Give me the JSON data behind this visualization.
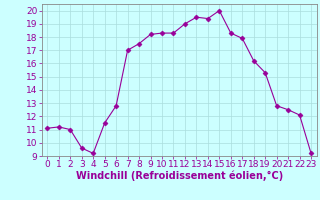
{
  "x": [
    0,
    1,
    2,
    3,
    4,
    5,
    6,
    7,
    8,
    9,
    10,
    11,
    12,
    13,
    14,
    15,
    16,
    17,
    18,
    19,
    20,
    21,
    22,
    23
  ],
  "y": [
    11.1,
    11.2,
    11.0,
    9.6,
    9.2,
    11.5,
    12.8,
    17.0,
    17.5,
    18.2,
    18.3,
    18.3,
    19.0,
    19.5,
    19.4,
    20.0,
    18.3,
    17.9,
    16.2,
    15.3,
    12.8,
    12.5,
    12.1,
    9.2
  ],
  "line_color": "#990099",
  "marker": "D",
  "marker_size": 2.5,
  "bg_color": "#ccffff",
  "grid_color": "#aadddd",
  "xlabel": "Windchill (Refroidissement éolien,°C)",
  "xlabel_fontsize": 7,
  "tick_fontsize": 6.5,
  "ylim": [
    9,
    20.5
  ],
  "xlim": [
    -0.5,
    23.5
  ],
  "yticks": [
    9,
    10,
    11,
    12,
    13,
    14,
    15,
    16,
    17,
    18,
    19,
    20
  ],
  "xticks": [
    0,
    1,
    2,
    3,
    4,
    5,
    6,
    7,
    8,
    9,
    10,
    11,
    12,
    13,
    14,
    15,
    16,
    17,
    18,
    19,
    20,
    21,
    22,
    23
  ]
}
